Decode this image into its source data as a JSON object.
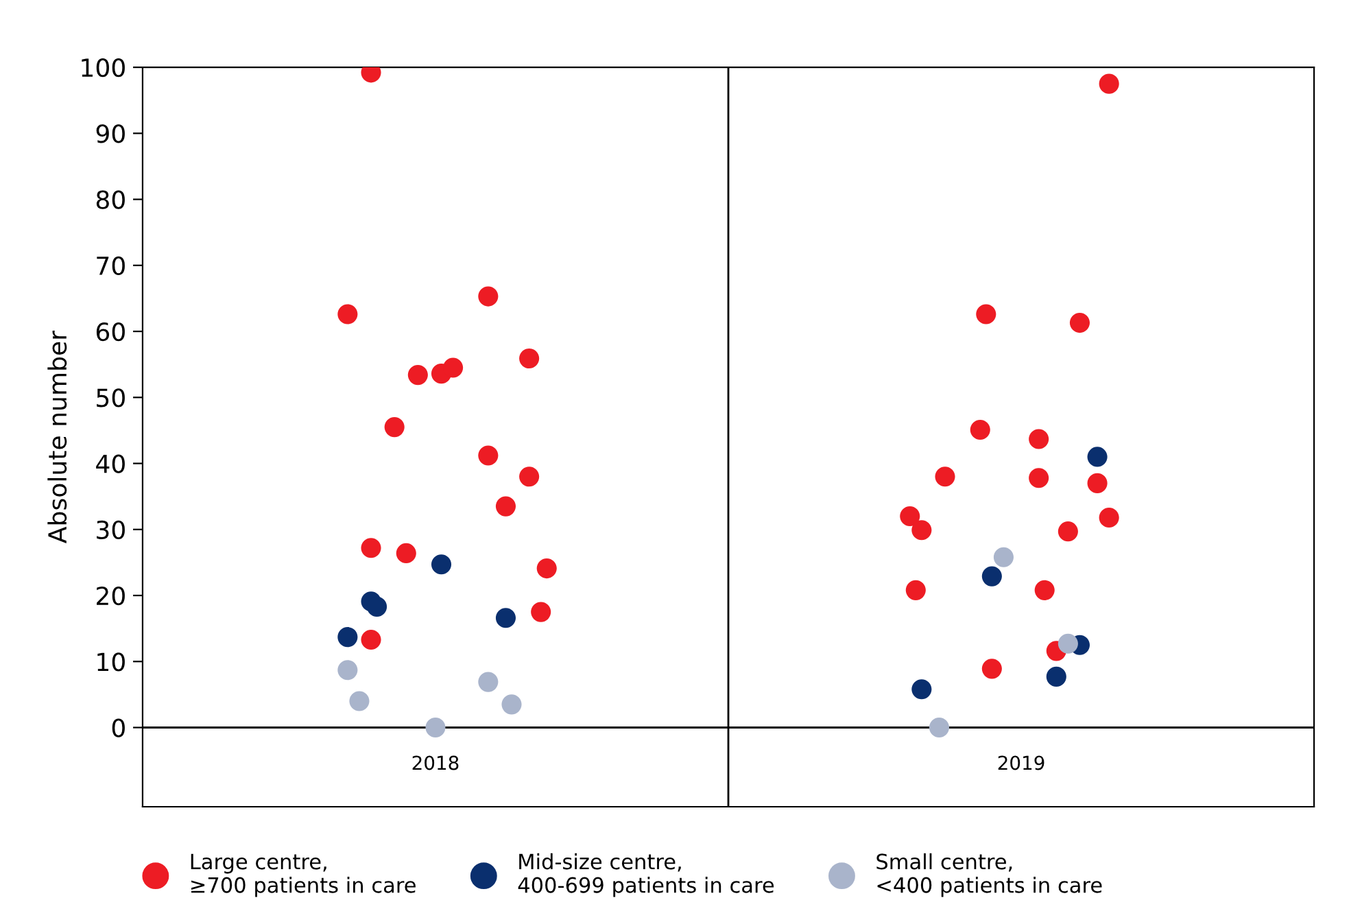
{
  "chart_data": {
    "type": "scatter",
    "ylabel": "Absolute number",
    "xlim": [
      2017.5,
      2019.5
    ],
    "xticks": [
      2018,
      2019
    ],
    "ylim": [
      -12,
      100
    ],
    "yticks": [
      0,
      10,
      20,
      30,
      40,
      50,
      60,
      70,
      80,
      90,
      100
    ],
    "grid": false,
    "legend": "bottom",
    "marker": "circle",
    "ref_lines": [
      {
        "axis": "x",
        "value": 2018.5,
        "color": "#000000"
      }
    ],
    "series": [
      {
        "name": "Large centre,\n≥700 patients in care",
        "color": "#ed1c24",
        "x": [
          2017.89,
          2017.85,
          2017.93,
          2017.97,
          2018.01,
          2018.03,
          2018.09,
          2018.16,
          2018.09,
          2018.16,
          2018.12,
          2017.89,
          2017.95,
          2018.19,
          2018.18,
          2017.89,
          2019.15,
          2018.94,
          2019.1,
          2018.93,
          2019.03,
          2018.87,
          2019.03,
          2019.13,
          2018.81,
          2018.83,
          2019.08,
          2019.15,
          2018.82,
          2019.04,
          2019.06,
          2018.95
        ],
        "values": [
          99.2,
          62.6,
          45.5,
          53.4,
          53.6,
          54.5,
          65.3,
          55.9,
          41.2,
          38.0,
          33.5,
          27.2,
          26.4,
          24.1,
          17.5,
          13.3,
          97.5,
          62.6,
          61.3,
          45.1,
          43.7,
          38.0,
          37.8,
          37.0,
          32.0,
          29.9,
          29.7,
          31.8,
          20.8,
          20.8,
          11.6,
          8.9
        ]
      },
      {
        "name": "Mid-size centre,\n400-699 patients in care",
        "color": "#0a2f6e",
        "x": [
          2017.89,
          2017.9,
          2017.85,
          2018.01,
          2018.12,
          2019.13,
          2018.95,
          2019.1,
          2019.06,
          2018.83
        ],
        "values": [
          19.1,
          18.3,
          13.7,
          24.7,
          16.6,
          41.0,
          22.9,
          12.5,
          7.7,
          5.8
        ]
      },
      {
        "name": "Small centre,\n<400 patients in care",
        "color": "#a9b4cb",
        "x": [
          2017.85,
          2017.87,
          2018.0,
          2018.09,
          2018.13,
          2018.97,
          2019.08,
          2018.86
        ],
        "values": [
          8.7,
          4.0,
          0,
          6.9,
          3.5,
          25.8,
          12.7,
          0
        ]
      }
    ]
  }
}
